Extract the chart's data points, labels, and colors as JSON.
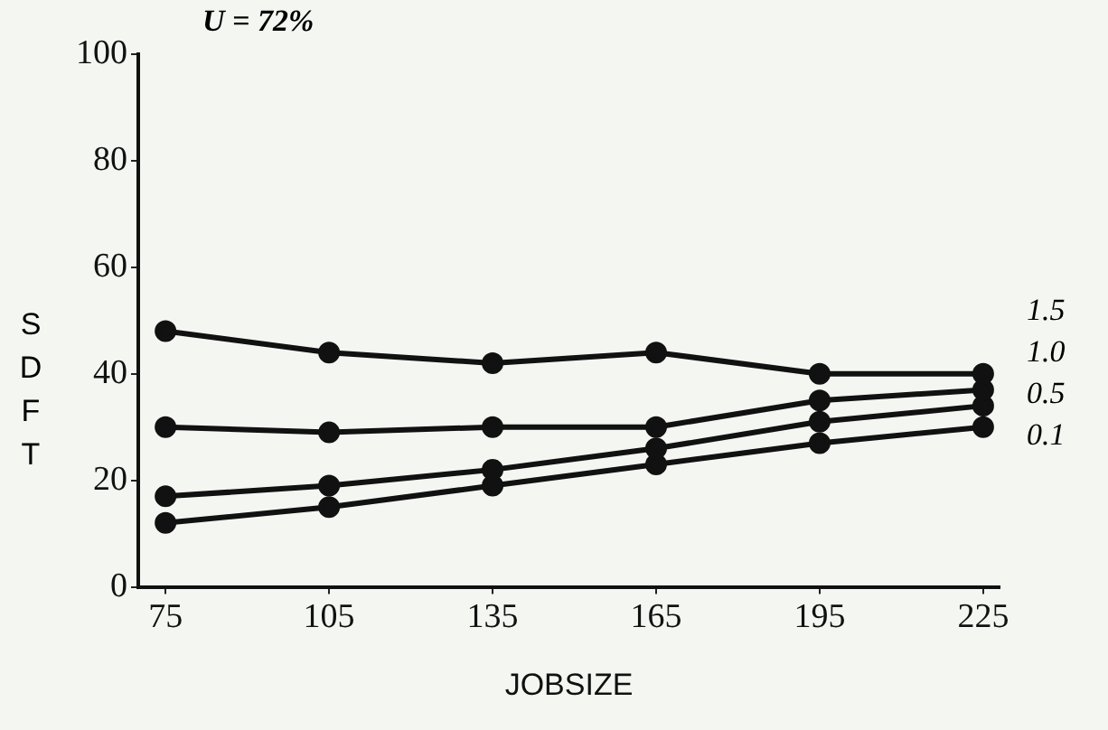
{
  "chart_data": {
    "type": "line",
    "title": "U = 72%",
    "xlabel": "JOBSIZE",
    "ylabel": "SDFT",
    "x": [
      75,
      105,
      135,
      165,
      195,
      225
    ],
    "series": [
      {
        "name": "1.5",
        "color": "#111111",
        "values": [
          48,
          44,
          42,
          44,
          40,
          40
        ]
      },
      {
        "name": "1.0",
        "color": "#111111",
        "values": [
          30,
          29,
          30,
          30,
          35,
          37
        ]
      },
      {
        "name": "0.5",
        "color": "#111111",
        "values": [
          17,
          19,
          22,
          26,
          31,
          34
        ]
      },
      {
        "name": "0.1",
        "color": "#111111",
        "values": [
          12,
          15,
          19,
          23,
          27,
          30
        ]
      }
    ],
    "xlim": [
      70,
      228
    ],
    "xticks": [
      75,
      105,
      135,
      165,
      195,
      225
    ],
    "ylim": [
      0,
      100
    ],
    "yticks": [
      0,
      20,
      40,
      60,
      80,
      100
    ],
    "grid": false,
    "legend": false,
    "marker": "circle",
    "line_style": "solid"
  }
}
